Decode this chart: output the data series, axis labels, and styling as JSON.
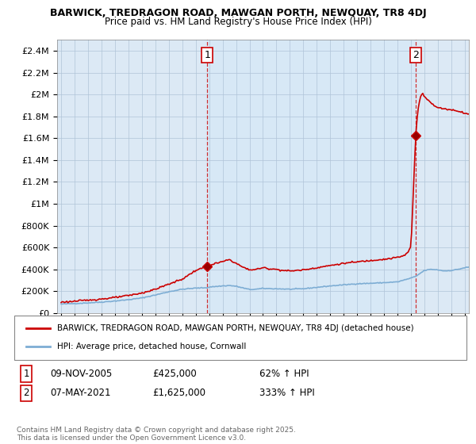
{
  "title_line1": "BARWICK, TREDRAGON ROAD, MAWGAN PORTH, NEWQUAY, TR8 4DJ",
  "title_line2": "Price paid vs. HM Land Registry's House Price Index (HPI)",
  "ylabel_ticks": [
    "£0",
    "£200K",
    "£400K",
    "£600K",
    "£800K",
    "£1M",
    "£1.2M",
    "£1.4M",
    "£1.6M",
    "£1.8M",
    "£2M",
    "£2.2M",
    "£2.4M"
  ],
  "ytick_values": [
    0,
    200000,
    400000,
    600000,
    800000,
    1000000,
    1200000,
    1400000,
    1600000,
    1800000,
    2000000,
    2200000,
    2400000
  ],
  "ylim": [
    0,
    2500000
  ],
  "xlim_start": 1994.7,
  "xlim_end": 2025.3,
  "hpi_color": "#7dadd4",
  "property_color": "#cc0000",
  "background_color": "#ffffff",
  "plot_bg_color": "#dce9f5",
  "fill_between_color": "#cde0f0",
  "grid_color": "#b0c4d8",
  "legend_label_red": "BARWICK, TREDRAGON ROAD, MAWGAN PORTH, NEWQUAY, TR8 4DJ (detached house)",
  "legend_label_blue": "HPI: Average price, detached house, Cornwall",
  "point1_label": "1",
  "point1_date": "09-NOV-2005",
  "point1_price": "£425,000",
  "point1_hpi": "62% ↑ HPI",
  "point2_label": "2",
  "point2_date": "07-MAY-2021",
  "point2_price": "£1,625,000",
  "point2_hpi": "333% ↑ HPI",
  "footer": "Contains HM Land Registry data © Crown copyright and database right 2025.\nThis data is licensed under the Open Government Licence v3.0.",
  "point1_x": 2005.85,
  "point1_y": 425000,
  "point2_x": 2021.35,
  "point2_y": 1625000
}
